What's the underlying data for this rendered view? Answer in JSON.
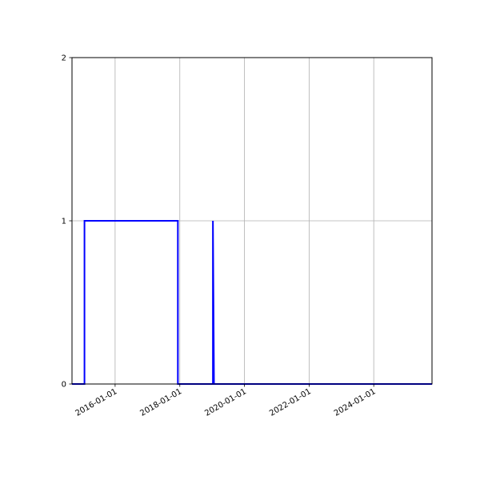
{
  "chart_data": {
    "type": "line",
    "title": "",
    "xlabel": "",
    "ylabel": "",
    "x_axis_type": "date",
    "xlim": [
      "2014-09-01",
      "2025-10-20"
    ],
    "ylim": [
      0,
      2
    ],
    "grid": true,
    "xticks": [
      "2016-01-01",
      "2018-01-01",
      "2020-01-01",
      "2022-01-01",
      "2024-01-01"
    ],
    "yticks": [
      0,
      1,
      2
    ],
    "series": [
      {
        "color": "#0000ff",
        "x": [
          "2014-09-01",
          "2015-01-20",
          "2015-01-20",
          "2017-12-10",
          "2017-12-10",
          "2019-01-10",
          "2019-01-10",
          "2019-01-22",
          "2025-10-20"
        ],
        "y": [
          0,
          0,
          1,
          1,
          0,
          0,
          1,
          0,
          0
        ]
      }
    ]
  }
}
